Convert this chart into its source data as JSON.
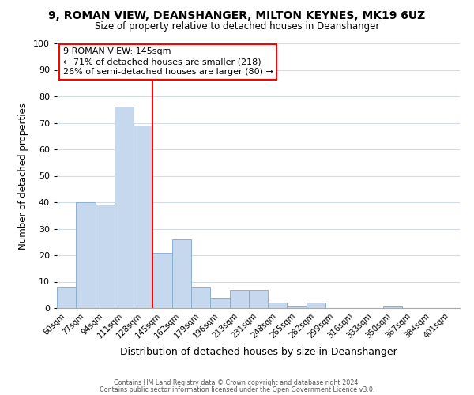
{
  "title": "9, ROMAN VIEW, DEANSHANGER, MILTON KEYNES, MK19 6UZ",
  "subtitle": "Size of property relative to detached houses in Deanshanger",
  "xlabel": "Distribution of detached houses by size in Deanshanger",
  "ylabel": "Number of detached properties",
  "bar_color": "#c5d8ee",
  "bar_edge_color": "#8ab0d0",
  "categories": [
    "60sqm",
    "77sqm",
    "94sqm",
    "111sqm",
    "128sqm",
    "145sqm",
    "162sqm",
    "179sqm",
    "196sqm",
    "213sqm",
    "231sqm",
    "248sqm",
    "265sqm",
    "282sqm",
    "299sqm",
    "316sqm",
    "333sqm",
    "350sqm",
    "367sqm",
    "384sqm",
    "401sqm"
  ],
  "values": [
    8,
    40,
    39,
    76,
    69,
    21,
    26,
    8,
    4,
    7,
    7,
    2,
    1,
    2,
    0,
    0,
    0,
    1,
    0,
    0,
    0
  ],
  "ylim": [
    0,
    100
  ],
  "yticks": [
    0,
    10,
    20,
    30,
    40,
    50,
    60,
    70,
    80,
    90,
    100
  ],
  "redline_index": 5,
  "annotation_line1": "9 ROMAN VIEW: 145sqm",
  "annotation_line2": "← 71% of detached houses are smaller (218)",
  "annotation_line3": "26% of semi-detached houses are larger (80) →",
  "footer_line1": "Contains HM Land Registry data © Crown copyright and database right 2024.",
  "footer_line2": "Contains public sector information licensed under the Open Government Licence v3.0.",
  "background_color": "#ffffff",
  "grid_color": "#d0dce8"
}
